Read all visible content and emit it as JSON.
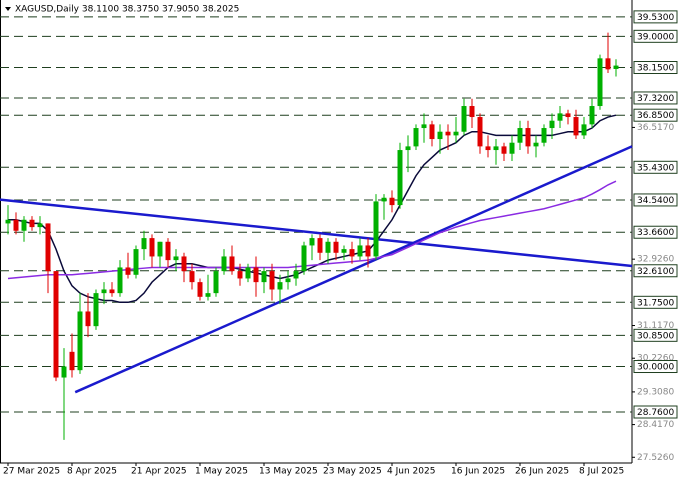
{
  "chart_data": {
    "type": "candlestick",
    "title": "XAGUSD,Daily  38.1100 38.3750 37.9050 38.2025",
    "ylim": [
      27.37,
      39.99
    ],
    "yticks": [
      {
        "value": 36.517,
        "label": "36.5170"
      },
      {
        "value": 32.926,
        "label": "32.9260"
      },
      {
        "value": 31.117,
        "label": "31.1170"
      },
      {
        "value": 30.226,
        "label": "30.2260"
      },
      {
        "value": 29.308,
        "label": "29.3080"
      },
      {
        "value": 28.417,
        "label": "28.4170"
      },
      {
        "value": 27.526,
        "label": "27.5260"
      }
    ],
    "levels": [
      {
        "value": 39.53,
        "label": "39.5300"
      },
      {
        "value": 39.0,
        "label": "39.0000"
      },
      {
        "value": 38.15,
        "label": "38.1500"
      },
      {
        "value": 37.32,
        "label": "37.3200"
      },
      {
        "value": 36.85,
        "label": "36.8500"
      },
      {
        "value": 35.43,
        "label": "35.4300"
      },
      {
        "value": 34.54,
        "label": "34.5400"
      },
      {
        "value": 33.66,
        "label": "33.6600"
      },
      {
        "value": 32.61,
        "label": "32.6100"
      },
      {
        "value": 31.75,
        "label": "31.7500"
      },
      {
        "value": 30.85,
        "label": "30.8500"
      },
      {
        "value": 30.0,
        "label": "30.0000"
      },
      {
        "value": 28.76,
        "label": "28.7600"
      }
    ],
    "categories": [
      "27 Mar 2025",
      null,
      null,
      null,
      null,
      null,
      null,
      null,
      "8 Apr 2025",
      null,
      null,
      null,
      null,
      null,
      null,
      null,
      "21 Apr 2025",
      null,
      null,
      null,
      null,
      null,
      null,
      null,
      "1 May 2025",
      null,
      null,
      null,
      null,
      null,
      null,
      null,
      "13 May 2025",
      null,
      null,
      null,
      null,
      null,
      null,
      null,
      "23 May 2025",
      null,
      null,
      null,
      null,
      null,
      null,
      null,
      "4 Jun 2025",
      null,
      null,
      null,
      null,
      null,
      null,
      null,
      "16 Jun 2025",
      null,
      null,
      null,
      null,
      null,
      null,
      null,
      "26 Jun 2025",
      null,
      null,
      null,
      null,
      null,
      null,
      null,
      "8 Jul 2025",
      null,
      null,
      null,
      null
    ],
    "up_color": "#00b000",
    "down_color": "#e00000",
    "open": [
      33.9,
      34.0,
      33.7,
      34.0,
      33.8,
      33.9,
      32.6,
      29.7,
      30.4,
      29.9,
      31.5,
      31.1,
      32.0,
      32.1,
      32.0,
      32.7,
      32.5,
      33.2,
      33.5,
      33.0,
      33.4,
      32.9,
      33.0,
      32.6,
      32.3,
      31.9,
      32.0,
      32.6,
      33.0,
      32.6,
      32.4,
      32.7,
      32.3,
      32.6,
      32.1,
      32.3,
      32.4,
      32.6,
      33.3,
      33.5,
      33.1,
      33.4,
      33.1,
      33.2,
      33.0,
      33.3,
      33.0,
      34.5,
      34.6,
      34.4,
      35.9,
      36.0,
      36.5,
      36.6,
      36.2,
      36.4,
      36.3,
      36.4,
      37.1,
      36.8,
      36.0,
      35.9,
      36.0,
      35.8,
      36.1,
      36.5,
      36.0,
      36.1,
      36.5,
      36.7,
      36.9,
      36.8,
      36.3,
      36.6,
      37.1,
      38.4,
      38.11
    ],
    "high": [
      34.4,
      34.2,
      34.1,
      34.1,
      34.1,
      33.9,
      32.6,
      30.5,
      30.9,
      32.0,
      32.0,
      32.1,
      32.3,
      32.3,
      32.9,
      33.1,
      33.3,
      33.7,
      33.6,
      33.4,
      33.5,
      33.2,
      33.1,
      32.8,
      32.4,
      32.5,
      32.7,
      33.2,
      33.3,
      32.8,
      32.8,
      33.0,
      32.7,
      32.8,
      32.5,
      32.6,
      32.8,
      33.4,
      33.6,
      33.6,
      33.5,
      33.5,
      33.3,
      33.4,
      33.5,
      33.5,
      34.7,
      34.7,
      34.8,
      36.1,
      36.3,
      36.6,
      36.9,
      36.7,
      36.6,
      36.6,
      36.8,
      37.3,
      37.3,
      36.9,
      36.3,
      36.2,
      36.1,
      36.3,
      36.7,
      36.7,
      36.3,
      36.6,
      36.9,
      37.1,
      37.0,
      37.0,
      36.8,
      37.3,
      38.5,
      39.1,
      38.375
    ],
    "low": [
      33.6,
      33.6,
      33.4,
      33.7,
      33.6,
      32.0,
      29.6,
      28.0,
      29.7,
      29.8,
      30.8,
      31.0,
      31.7,
      31.9,
      31.9,
      32.4,
      32.4,
      32.9,
      32.7,
      32.7,
      32.7,
      32.6,
      32.3,
      32.1,
      31.8,
      31.8,
      31.9,
      32.5,
      32.5,
      32.2,
      32.3,
      31.9,
      32.0,
      31.8,
      31.7,
      32.1,
      32.2,
      32.5,
      32.9,
      32.9,
      32.8,
      32.9,
      32.9,
      32.8,
      32.9,
      32.7,
      32.9,
      34.0,
      34.2,
      34.3,
      35.3,
      35.9,
      36.1,
      36.0,
      35.8,
      35.9,
      36.1,
      36.3,
      36.5,
      35.8,
      35.7,
      35.5,
      35.6,
      35.6,
      35.9,
      35.8,
      35.7,
      36.0,
      36.2,
      36.5,
      36.6,
      36.2,
      36.2,
      36.5,
      37.0,
      38.0,
      37.905
    ],
    "close": [
      34.0,
      33.7,
      34.0,
      33.8,
      33.9,
      32.6,
      29.7,
      30.0,
      29.9,
      31.5,
      31.1,
      32.0,
      32.1,
      32.0,
      32.7,
      32.5,
      33.2,
      33.5,
      33.0,
      33.4,
      32.9,
      33.0,
      32.6,
      32.3,
      31.9,
      32.0,
      32.6,
      33.0,
      32.6,
      32.4,
      32.7,
      32.3,
      32.6,
      32.1,
      32.3,
      32.4,
      32.6,
      33.3,
      33.5,
      33.1,
      33.4,
      33.1,
      33.2,
      33.0,
      33.3,
      33.0,
      34.5,
      34.6,
      34.4,
      35.9,
      36.0,
      36.5,
      36.6,
      36.2,
      36.4,
      36.3,
      36.4,
      37.1,
      36.8,
      36.0,
      35.9,
      36.0,
      35.8,
      36.1,
      36.5,
      36.0,
      36.1,
      36.5,
      36.7,
      36.9,
      36.8,
      36.3,
      36.6,
      37.1,
      38.4,
      38.1,
      38.2025
    ],
    "moving_averages": [
      {
        "color": "#0a0a3a",
        "values": [
          34.0,
          34.0,
          33.95,
          33.9,
          33.9,
          33.7,
          33.2,
          32.6,
          32.2,
          32.0,
          31.9,
          31.85,
          31.8,
          31.8,
          31.75,
          31.75,
          31.8,
          32.0,
          32.3,
          32.5,
          32.7,
          32.8,
          32.8,
          32.8,
          32.75,
          32.7,
          32.7,
          32.7,
          32.7,
          32.65,
          32.6,
          32.55,
          32.5,
          32.45,
          32.4,
          32.45,
          32.5,
          32.6,
          32.7,
          32.8,
          32.9,
          32.95,
          33.0,
          33.05,
          33.1,
          33.15,
          33.4,
          33.7,
          34.0,
          34.4,
          34.8,
          35.2,
          35.5,
          35.7,
          35.9,
          36.0,
          36.1,
          36.3,
          36.4,
          36.4,
          36.35,
          36.3,
          36.3,
          36.3,
          36.3,
          36.3,
          36.3,
          36.3,
          36.3,
          36.35,
          36.4,
          36.4,
          36.4,
          36.5,
          36.7,
          36.8,
          36.85
        ]
      },
      {
        "color": "#8a2be2",
        "values": [
          32.4,
          32.42,
          32.44,
          32.46,
          32.48,
          32.5,
          32.5,
          32.5,
          32.5,
          32.52,
          32.54,
          32.56,
          32.58,
          32.6,
          32.62,
          32.64,
          32.66,
          32.68,
          32.7,
          32.7,
          32.7,
          32.7,
          32.7,
          32.7,
          32.7,
          32.7,
          32.7,
          32.7,
          32.7,
          32.7,
          32.7,
          32.7,
          32.7,
          32.7,
          32.7,
          32.7,
          32.72,
          32.74,
          32.76,
          32.78,
          32.8,
          32.82,
          32.84,
          32.86,
          32.88,
          32.9,
          32.95,
          33.0,
          33.05,
          33.15,
          33.25,
          33.35,
          33.45,
          33.55,
          33.65,
          33.72,
          33.8,
          33.86,
          33.92,
          33.98,
          34.02,
          34.06,
          34.1,
          34.14,
          34.18,
          34.22,
          34.26,
          34.3,
          34.36,
          34.42,
          34.48,
          34.54,
          34.6,
          34.7,
          34.82,
          34.95,
          35.05
        ]
      }
    ],
    "trendlines": [
      {
        "color": "#1a1acd",
        "x": [
          -1,
          78
        ],
        "values": [
          34.55,
          32.74
        ]
      },
      {
        "color": "#1a1acd",
        "x": [
          8.4,
          78
        ],
        "values": [
          29.3,
          36.0
        ]
      }
    ]
  }
}
